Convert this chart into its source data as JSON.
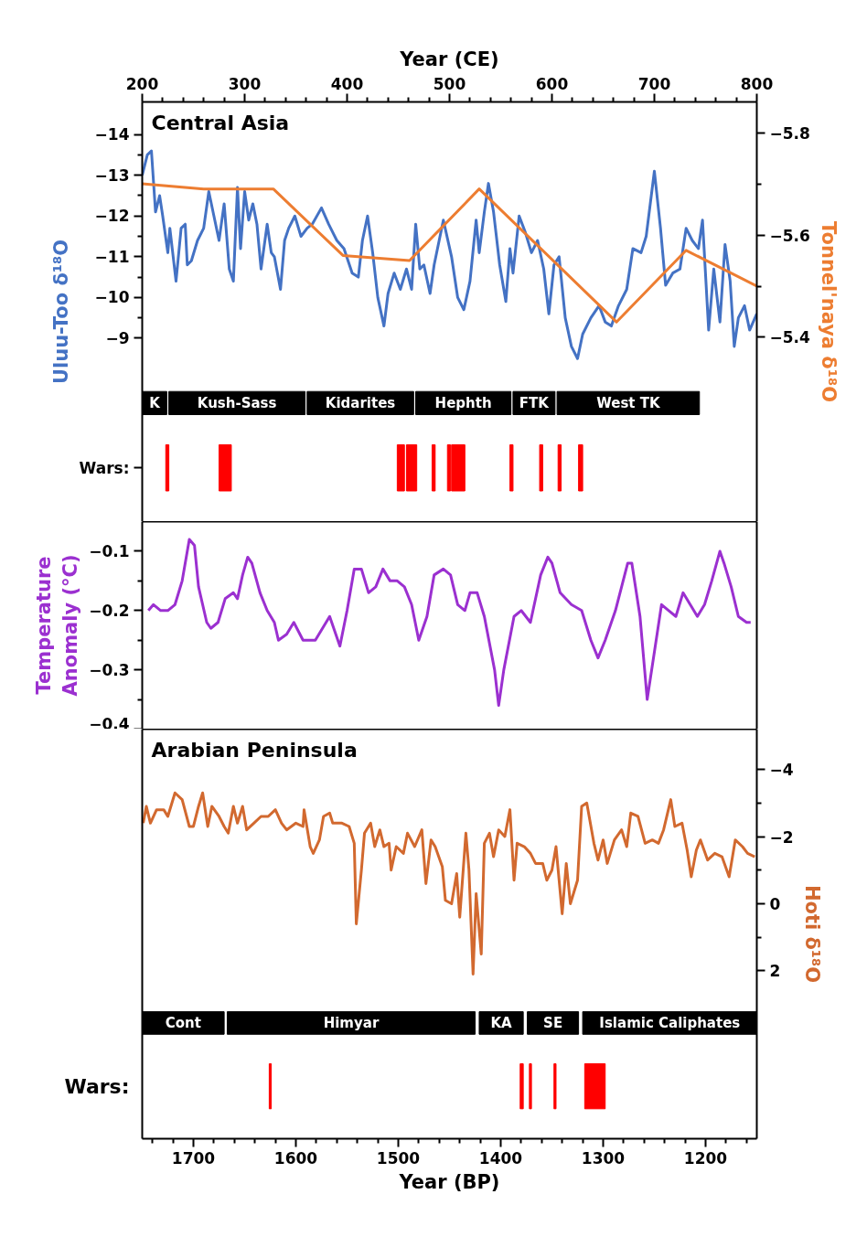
{
  "chart_data": [
    {
      "type": "line",
      "title": "Central Asia",
      "xlabel": "Year (CE)",
      "ylabel": "Uluu-Too δ¹⁸O",
      "y2label": "Tonnel'naya δ¹⁸O",
      "annotations": [
        "Wars:"
      ],
      "xlim": [
        200,
        800
      ],
      "xticks": [
        200,
        {
          "value": 220,
          "label": null
        },
        {
          "value": 240,
          "label": null
        },
        {
          "value": 260,
          "label": null
        },
        {
          "value": 280,
          "label": null
        },
        300,
        {
          "value": 320,
          "label": null
        },
        {
          "value": 340,
          "label": null
        },
        {
          "value": 360,
          "label": null
        },
        {
          "value": 380,
          "label": null
        },
        400,
        {
          "value": 420,
          "label": null
        },
        {
          "value": 440,
          "label": null
        },
        {
          "value": 460,
          "label": null
        },
        {
          "value": 480,
          "label": null
        },
        500,
        {
          "value": 520,
          "label": null
        },
        {
          "value": 540,
          "label": null
        },
        {
          "value": 560,
          "label": null
        },
        {
          "value": 580,
          "label": null
        },
        600,
        {
          "value": 620,
          "label": null
        },
        {
          "value": 640,
          "label": null
        },
        {
          "value": 660,
          "label": null
        },
        {
          "value": 680,
          "label": null
        },
        700,
        {
          "value": 720,
          "label": null
        },
        {
          "value": 740,
          "label": null
        },
        {
          "value": 760,
          "label": null
        },
        {
          "value": 780,
          "label": null
        },
        800
      ],
      "ylim": [
        -4.5,
        -14.8
      ],
      "yticks": [
        -14,
        {
          "value": -13.5,
          "label": null
        },
        -13,
        {
          "value": -12.5,
          "label": null
        },
        -12,
        {
          "value": -11.5,
          "label": null
        },
        -11,
        {
          "value": -10.5,
          "label": null
        },
        -10,
        {
          "value": -9.5,
          "label": null
        },
        -9
      ],
      "y2lim": [
        -5.04,
        -5.86
      ],
      "y2ticks": [
        -5.8,
        {
          "value": -5.7,
          "label": null
        },
        -5.6,
        {
          "value": -5.5,
          "label": null
        },
        -5.4
      ],
      "series": [
        {
          "color": "#4472c4",
          "x": [
            200,
            205,
            209,
            213,
            217,
            220,
            225,
            227,
            233,
            238,
            242,
            244,
            248,
            254,
            260,
            265,
            270,
            275,
            280,
            285,
            289,
            293,
            296,
            300,
            304,
            308,
            312,
            316,
            322,
            326,
            329,
            335,
            339,
            343,
            349,
            355,
            361,
            366,
            375,
            382,
            390,
            397,
            405,
            411,
            415,
            420,
            425,
            430,
            436,
            440,
            446,
            452,
            458,
            463,
            467,
            471,
            475,
            481,
            485,
            494,
            502,
            508,
            514,
            520,
            526,
            529,
            534,
            538,
            543,
            549,
            555,
            559,
            562,
            568,
            574,
            580,
            586,
            592,
            597,
            602,
            607,
            613,
            619,
            625,
            630,
            638,
            646,
            652,
            658,
            665,
            673,
            679,
            687,
            692,
            700,
            706,
            711,
            718,
            725,
            731,
            737,
            743,
            747,
            753,
            758,
            764,
            769,
            774,
            778,
            782,
            788,
            793,
            800
          ],
          "values": [
            -13.0,
            -13.5,
            -13.6,
            -12.1,
            -12.5,
            -12.0,
            -11.1,
            -11.7,
            -10.4,
            -11.7,
            -11.8,
            -10.8,
            -10.9,
            -11.4,
            -11.7,
            -12.6,
            -12.0,
            -11.4,
            -12.3,
            -10.7,
            -10.4,
            -12.7,
            -11.2,
            -12.6,
            -11.9,
            -12.3,
            -11.8,
            -10.7,
            -11.8,
            -11.1,
            -11.0,
            -10.2,
            -11.4,
            -11.7,
            -12.0,
            -11.5,
            -11.7,
            -11.8,
            -12.2,
            -11.8,
            -11.4,
            -11.2,
            -10.6,
            -10.5,
            -11.4,
            -12.0,
            -11.1,
            -10.0,
            -9.3,
            -10.1,
            -10.6,
            -10.2,
            -10.7,
            -10.2,
            -11.8,
            -10.7,
            -10.8,
            -10.1,
            -10.8,
            -11.9,
            -11.0,
            -10.0,
            -9.7,
            -10.4,
            -11.9,
            -11.1,
            -12.1,
            -12.8,
            -12.1,
            -10.8,
            -9.9,
            -11.2,
            -10.6,
            -12.0,
            -11.6,
            -11.1,
            -11.4,
            -10.7,
            -9.6,
            -10.8,
            -11.0,
            -9.5,
            -8.8,
            -8.5,
            -9.1,
            -9.5,
            -9.8,
            -9.4,
            -9.3,
            -9.8,
            -10.2,
            -11.2,
            -11.1,
            -11.5,
            -13.1,
            -11.7,
            -10.3,
            -10.6,
            -10.7,
            -11.7,
            -11.4,
            -11.2,
            -11.9,
            -9.2,
            -10.7,
            -9.4,
            -11.3,
            -10.4,
            -8.8,
            -9.5,
            -9.8,
            -9.2,
            -9.6
          ]
        },
        {
          "color": "#ed7d31",
          "axis": "y2",
          "x": [
            200,
            260,
            328,
            396,
            461,
            529,
            663,
            731,
            800
          ],
          "values": [
            -5.7,
            -5.69,
            -5.69,
            -5.56,
            -5.55,
            -5.69,
            -5.43,
            -5.57,
            -5.5
          ]
        }
      ],
      "bands": [
        {
          "axis": "x",
          "from": 200,
          "to": 224,
          "label": "K",
          "color": "#000000"
        },
        {
          "axis": "x",
          "from": 226,
          "to": 359,
          "label": "Kush-Sass",
          "color": "#000000"
        },
        {
          "axis": "x",
          "from": 361,
          "to": 465,
          "label": "Kidarites",
          "color": "#000000"
        },
        {
          "axis": "x",
          "from": 467,
          "to": 560,
          "label": "Hephth",
          "color": "#000000"
        },
        {
          "axis": "x",
          "from": 562,
          "to": 603,
          "label": "FTK",
          "color": "#000000"
        },
        {
          "axis": "x",
          "from": 605,
          "to": 744,
          "label": "West TK",
          "color": "#000000"
        },
        {
          "axis": "x",
          "from": 223,
          "to": 226,
          "color": "#ff0000"
        },
        {
          "axis": "x",
          "from": 275,
          "to": 287,
          "color": "#ff0000"
        },
        {
          "axis": "x",
          "from": 449,
          "to": 456,
          "color": "#ff0000"
        },
        {
          "axis": "x",
          "from": 458,
          "to": 468,
          "color": "#ff0000"
        },
        {
          "axis": "x",
          "from": 483,
          "to": 486,
          "color": "#ff0000"
        },
        {
          "axis": "x",
          "from": 498,
          "to": 501,
          "color": "#ff0000"
        },
        {
          "axis": "x",
          "from": 502,
          "to": 515,
          "color": "#ff0000"
        },
        {
          "axis": "x",
          "from": 559,
          "to": 562,
          "color": "#ff0000"
        },
        {
          "axis": "x",
          "from": 588,
          "to": 591,
          "color": "#ff0000"
        },
        {
          "axis": "x",
          "from": 606,
          "to": 609,
          "color": "#ff0000"
        },
        {
          "axis": "x",
          "from": 626,
          "to": 630,
          "color": "#ff0000"
        }
      ]
    },
    {
      "type": "line",
      "tick_labels": "y",
      "ylabel": "Temperature Anomaly (°C)",
      "xlim": [
        200,
        800
      ],
      "ylim": [
        -0.4,
        -0.05
      ],
      "yticks": [
        -0.1,
        {
          "value": -0.15,
          "label": null
        },
        -0.2,
        {
          "value": -0.25,
          "label": null
        },
        -0.3,
        {
          "value": -0.35,
          "label": null
        },
        -0.4
      ],
      "series": [
        {
          "color": "#9b30d0",
          "x": [
            206,
            211,
            218,
            225,
            232,
            239,
            246,
            251,
            255,
            263,
            267,
            274,
            281,
            289,
            293,
            298,
            303,
            307,
            315,
            322,
            329,
            333,
            341,
            348,
            357,
            369,
            376,
            383,
            393,
            400,
            407,
            414,
            421,
            428,
            435,
            442,
            449,
            456,
            463,
            470,
            478,
            485,
            494,
            501,
            508,
            515,
            520,
            527,
            534,
            544,
            548,
            553,
            563,
            570,
            579,
            589,
            596,
            600,
            608,
            619,
            629,
            638,
            645,
            652,
            662,
            674,
            678,
            686,
            693,
            700,
            707,
            714,
            721,
            728,
            735,
            742,
            749,
            756,
            764,
            768,
            775,
            782,
            790,
            794
          ],
          "values": [
            -0.2,
            -0.19,
            -0.2,
            -0.2,
            -0.19,
            -0.15,
            -0.08,
            -0.09,
            -0.16,
            -0.22,
            -0.23,
            -0.22,
            -0.18,
            -0.17,
            -0.18,
            -0.14,
            -0.11,
            -0.12,
            -0.17,
            -0.2,
            -0.22,
            -0.25,
            -0.24,
            -0.22,
            -0.25,
            -0.25,
            -0.23,
            -0.21,
            -0.26,
            -0.2,
            -0.13,
            -0.13,
            -0.17,
            -0.16,
            -0.13,
            -0.15,
            -0.15,
            -0.16,
            -0.19,
            -0.25,
            -0.21,
            -0.14,
            -0.13,
            -0.14,
            -0.19,
            -0.2,
            -0.17,
            -0.17,
            -0.21,
            -0.3,
            -0.36,
            -0.3,
            -0.21,
            -0.2,
            -0.22,
            -0.14,
            -0.11,
            -0.12,
            -0.17,
            -0.19,
            -0.2,
            -0.25,
            -0.28,
            -0.25,
            -0.2,
            -0.12,
            -0.12,
            -0.21,
            -0.35,
            -0.27,
            -0.19,
            -0.2,
            -0.21,
            -0.17,
            -0.19,
            -0.21,
            -0.19,
            -0.15,
            -0.1,
            -0.12,
            -0.16,
            -0.21,
            -0.22,
            -0.22
          ]
        }
      ]
    },
    {
      "type": "line",
      "title": "Arabian Peninsula",
      "xlabel": "Year (BP)",
      "y2label": "Hoti δ¹⁸O",
      "annotations": [
        "Wars:"
      ],
      "xlim": [
        1750,
        1150
      ],
      "xticks": [
        {
          "value": 1740,
          "label": null
        },
        {
          "value": 1720,
          "label": null
        },
        1700,
        {
          "value": 1680,
          "label": null
        },
        {
          "value": 1660,
          "label": null
        },
        {
          "value": 1640,
          "label": null
        },
        {
          "value": 1620,
          "label": null
        },
        1600,
        {
          "value": 1580,
          "label": null
        },
        {
          "value": 1560,
          "label": null
        },
        {
          "value": 1540,
          "label": null
        },
        {
          "value": 1520,
          "label": null
        },
        1500,
        {
          "value": 1480,
          "label": null
        },
        {
          "value": 1460,
          "label": null
        },
        {
          "value": 1440,
          "label": null
        },
        {
          "value": 1420,
          "label": null
        },
        1400,
        {
          "value": 1380,
          "label": null
        },
        {
          "value": 1360,
          "label": null
        },
        {
          "value": 1340,
          "label": null
        },
        {
          "value": 1320,
          "label": null
        },
        1300,
        {
          "value": 1280,
          "label": null
        },
        {
          "value": 1260,
          "label": null
        },
        {
          "value": 1240,
          "label": null
        },
        {
          "value": 1220,
          "label": null
        },
        1200,
        {
          "value": 1180,
          "label": null
        },
        {
          "value": 1160,
          "label": null
        }
      ],
      "y2lim": [
        7.0,
        -5.2
      ],
      "y2ticks": [
        -4,
        {
          "value": -3,
          "label": null
        },
        -2,
        {
          "value": -1,
          "label": null
        },
        0,
        {
          "value": 1,
          "label": null
        },
        2
      ],
      "series": [
        {
          "color": "#d2692f",
          "axis": "y2",
          "x": [
            1749,
            1746,
            1742,
            1736,
            1729,
            1725,
            1718,
            1711,
            1704,
            1700,
            1695,
            1691,
            1686,
            1682,
            1675,
            1670,
            1666,
            1661,
            1657,
            1652,
            1648,
            1641,
            1634,
            1627,
            1620,
            1614,
            1609,
            1600,
            1593,
            1592,
            1586,
            1583,
            1577,
            1573,
            1567,
            1564,
            1555,
            1548,
            1543,
            1541,
            1536,
            1533,
            1527,
            1523,
            1518,
            1514,
            1509,
            1507,
            1502,
            1495,
            1491,
            1484,
            1477,
            1473,
            1468,
            1464,
            1457,
            1454,
            1448,
            1443,
            1440,
            1434,
            1431,
            1427,
            1424,
            1419,
            1416,
            1411,
            1407,
            1402,
            1396,
            1391,
            1387,
            1384,
            1377,
            1371,
            1366,
            1359,
            1355,
            1350,
            1346,
            1340,
            1336,
            1332,
            1325,
            1321,
            1316,
            1309,
            1305,
            1300,
            1296,
            1289,
            1282,
            1277,
            1273,
            1266,
            1259,
            1252,
            1246,
            1241,
            1234,
            1230,
            1223,
            1218,
            1214,
            1209,
            1205,
            1198,
            1191,
            1184,
            1177,
            1171,
            1164,
            1159,
            1152
          ],
          "values": [
            -2.4,
            -2.9,
            -2.4,
            -2.8,
            -2.8,
            -2.6,
            -3.3,
            -3.1,
            -2.3,
            -2.3,
            -2.9,
            -3.3,
            -2.3,
            -2.9,
            -2.6,
            -2.3,
            -2.1,
            -2.9,
            -2.4,
            -2.9,
            -2.2,
            -2.4,
            -2.6,
            -2.6,
            -2.8,
            -2.4,
            -2.2,
            -2.4,
            -2.3,
            -2.8,
            -1.7,
            -1.5,
            -1.9,
            -2.6,
            -2.7,
            -2.4,
            -2.4,
            -2.3,
            -1.8,
            0.6,
            -1.0,
            -2.1,
            -2.4,
            -1.7,
            -2.2,
            -1.7,
            -1.8,
            -1.0,
            -1.7,
            -1.5,
            -2.1,
            -1.7,
            -2.2,
            -0.6,
            -1.9,
            -1.7,
            -1.1,
            -0.1,
            0.0,
            -0.9,
            0.4,
            -2.1,
            -1.0,
            2.1,
            -0.3,
            1.5,
            -1.8,
            -2.1,
            -1.4,
            -2.2,
            -2.0,
            -2.8,
            -0.7,
            -1.8,
            -1.7,
            -1.5,
            -1.2,
            -1.2,
            -0.7,
            -1.0,
            -1.7,
            0.3,
            -1.2,
            0.0,
            -0.7,
            -2.9,
            -3.0,
            -1.8,
            -1.3,
            -1.9,
            -1.2,
            -1.9,
            -2.2,
            -1.7,
            -2.7,
            -2.6,
            -1.8,
            -1.9,
            -1.8,
            -2.2,
            -3.1,
            -2.3,
            -2.4,
            -1.6,
            -0.8,
            -1.6,
            -1.9,
            -1.3,
            -1.5,
            -1.4,
            -0.8,
            -1.9,
            -1.7,
            -1.5,
            -1.4
          ]
        }
      ],
      "bands": [
        {
          "axis": "x",
          "from": 1750,
          "to": 1670,
          "label": "Cont",
          "color": "#000000"
        },
        {
          "axis": "x",
          "from": 1667,
          "to": 1425,
          "label": "Himyar",
          "color": "#000000"
        },
        {
          "axis": "x",
          "from": 1421,
          "to": 1378,
          "label": "KA",
          "color": "#000000"
        },
        {
          "axis": "x",
          "from": 1374,
          "to": 1324,
          "label": "SE",
          "color": "#000000"
        },
        {
          "axis": "x",
          "from": 1320,
          "to": 1150,
          "label": "Islamic Caliphates",
          "color": "#000000"
        },
        {
          "axis": "x",
          "from": 1626,
          "to": 1624,
          "color": "#ff0000"
        },
        {
          "axis": "x",
          "from": 1381,
          "to": 1378,
          "color": "#ff0000"
        },
        {
          "axis": "x",
          "from": 1372,
          "to": 1370,
          "color": "#ff0000"
        },
        {
          "axis": "x",
          "from": 1348,
          "to": 1346,
          "color": "#ff0000"
        },
        {
          "axis": "x",
          "from": 1318,
          "to": 1298,
          "color": "#ff0000"
        }
      ]
    }
  ]
}
